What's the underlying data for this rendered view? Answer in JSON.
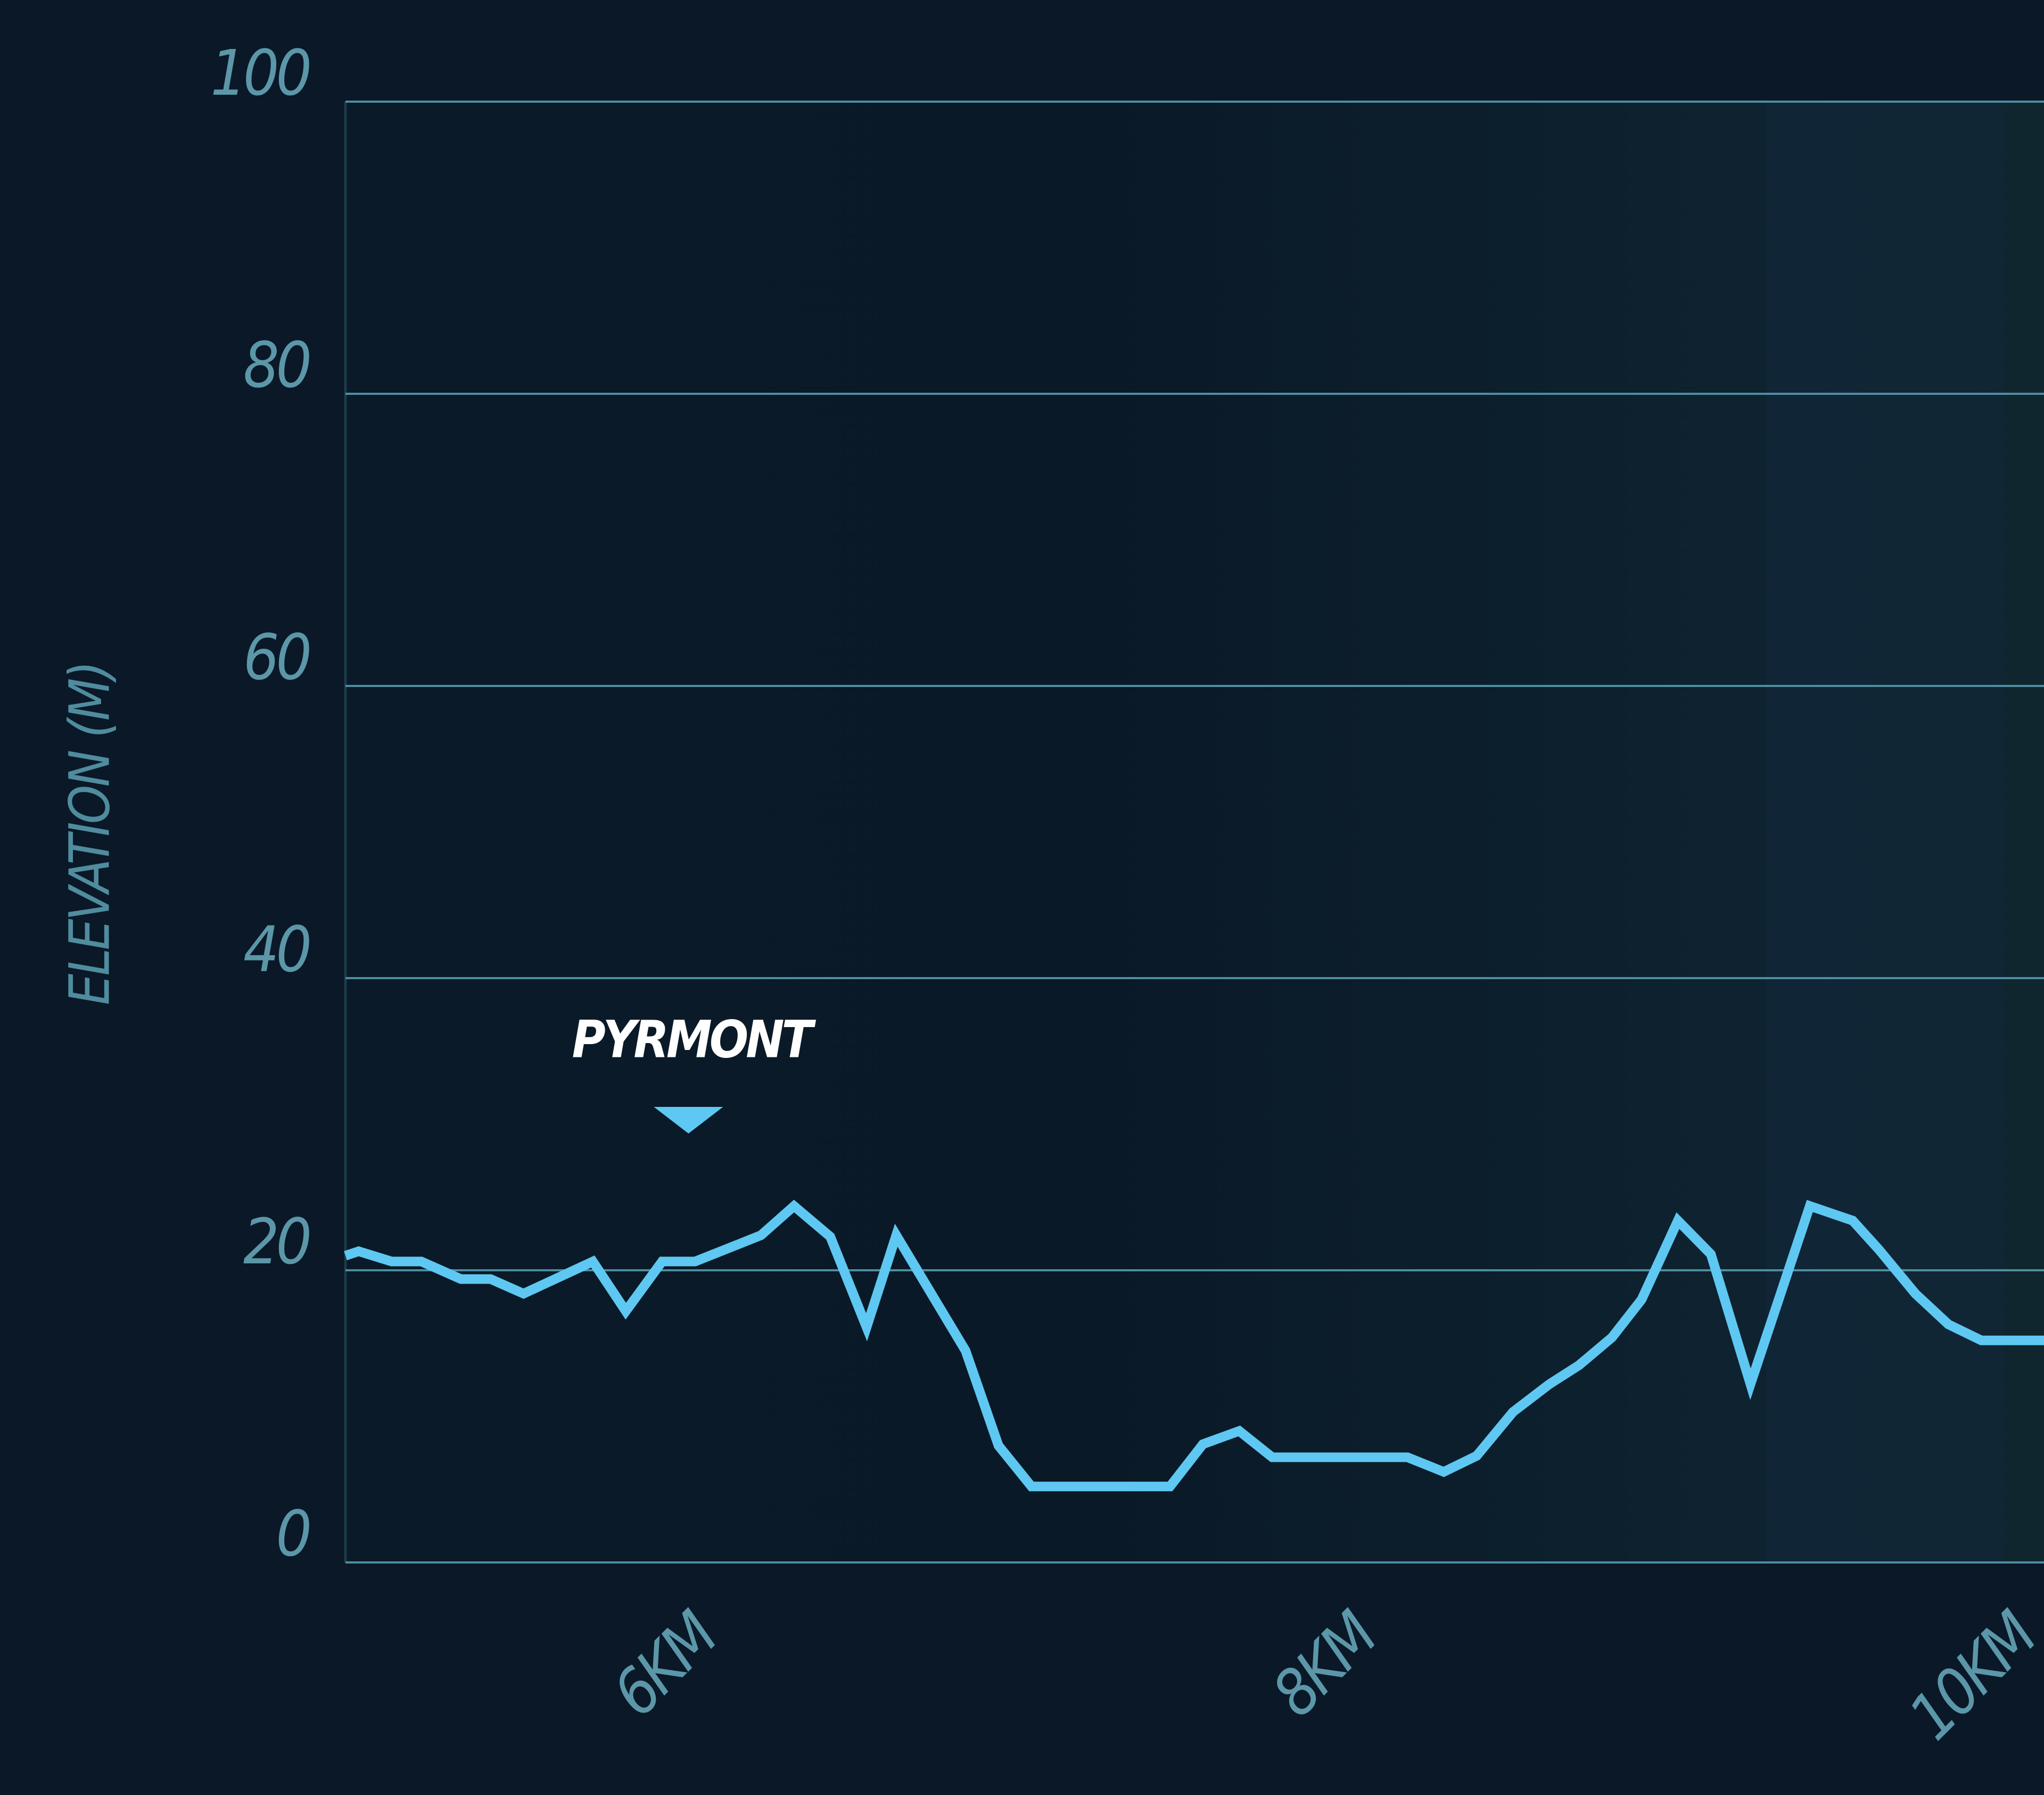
{
  "chart_data": {
    "type": "line",
    "y_label": "ELEVATION (M)",
    "x": [
      5.0,
      5.04,
      5.14,
      5.23,
      5.35,
      5.44,
      5.54,
      5.75,
      5.85,
      5.96,
      6.06,
      6.26,
      6.36,
      6.47,
      6.58,
      6.67,
      6.88,
      6.98,
      7.08,
      7.5,
      7.6,
      7.71,
      7.81,
      8.22,
      8.33,
      8.43,
      8.54,
      8.65,
      8.74,
      8.84,
      8.93,
      9.04,
      9.14,
      9.26,
      9.44,
      9.57,
      9.65,
      9.76,
      9.86,
      9.96,
      10.15
    ],
    "series": [
      {
        "name": "Elevation",
        "color": "#5ec8f2",
        "values": [
          21.0,
          21.3,
          20.6,
          20.6,
          19.4,
          19.4,
          18.4,
          20.6,
          17.2,
          20.6,
          20.6,
          22.4,
          24.4,
          22.3,
          16.1,
          22.4,
          14.5,
          8.0,
          5.2,
          5.2,
          8.1,
          9.0,
          7.2,
          7.2,
          6.2,
          7.3,
          10.3,
          12.2,
          13.5,
          15.4,
          18.0,
          23.4,
          21.1,
          12.2,
          24.4,
          23.4,
          21.4,
          18.4,
          16.3,
          15.2,
          15.2
        ]
      }
    ],
    "xlim": [
      5,
      10.15
    ],
    "xticks": [
      {
        "value": 6,
        "label": "6KM"
      },
      {
        "value": 8,
        "label": "8KM"
      },
      {
        "value": 10,
        "label": "10KM"
      }
    ],
    "ylim": [
      0,
      100
    ],
    "yticks": [
      0,
      20,
      40,
      60,
      80,
      100
    ],
    "grid": true,
    "annotations": [
      {
        "text": "PYRMONT",
        "x": 6.04
      }
    ]
  }
}
